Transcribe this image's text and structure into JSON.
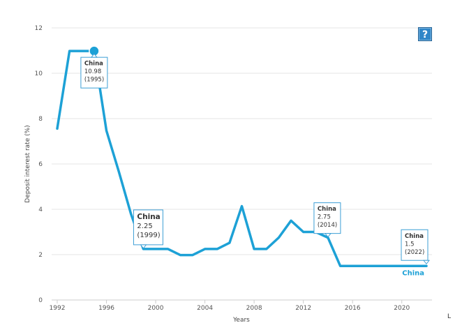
{
  "help_button": {
    "label": "?"
  },
  "colors": {
    "series": "#1da1d6",
    "grid": "#e6e6e6",
    "axis": "#cccccc",
    "tooltip_border": "#3c9fd6"
  },
  "chart_data": {
    "type": "line",
    "xlabel": "Years",
    "ylabel": "Deposit interest rate (%)",
    "xlim": [
      1992,
      2022
    ],
    "ylim": [
      0,
      12
    ],
    "x_ticks": [
      1992,
      1996,
      2000,
      2004,
      2008,
      2012,
      2016,
      2020
    ],
    "y_ticks": [
      0,
      2,
      4,
      6,
      8,
      10,
      12
    ],
    "grid": true,
    "legend": "end-of-line label",
    "series": [
      {
        "name": "China",
        "x": [
          1992,
          1993,
          1994,
          1995,
          1996,
          1997,
          1998,
          1999,
          2000,
          2001,
          2002,
          2003,
          2004,
          2005,
          2006,
          2007,
          2008,
          2009,
          2010,
          2011,
          2012,
          2013,
          2014,
          2015,
          2016,
          2017,
          2018,
          2019,
          2020,
          2021,
          2022
        ],
        "values": [
          7.56,
          10.98,
          10.98,
          10.98,
          7.47,
          5.67,
          3.78,
          2.25,
          2.25,
          2.25,
          1.98,
          1.98,
          2.25,
          2.25,
          2.52,
          4.14,
          2.25,
          2.25,
          2.75,
          3.5,
          3.0,
          3.0,
          2.75,
          1.5,
          1.5,
          1.5,
          1.5,
          1.5,
          1.5,
          1.5,
          1.5
        ]
      }
    ],
    "highlight_points": [
      {
        "x": 1995,
        "y": 10.98
      }
    ],
    "annotations": [
      {
        "series": "China",
        "value": "10.98",
        "year": "(1995)",
        "x": 1995,
        "y": 10.98,
        "size": "small"
      },
      {
        "series": "China",
        "value": "2.25",
        "year": "(1999)",
        "x": 1999,
        "y": 2.25,
        "size": "large"
      },
      {
        "series": "China",
        "value": "2.75",
        "year": "(2014)",
        "x": 2014,
        "y": 2.75,
        "size": "small"
      },
      {
        "series": "China",
        "value": "1.5",
        "year": "(2022)",
        "x": 2022,
        "y": 1.5,
        "size": "small"
      }
    ],
    "series_end_label": "China"
  },
  "corner_mark": "L"
}
